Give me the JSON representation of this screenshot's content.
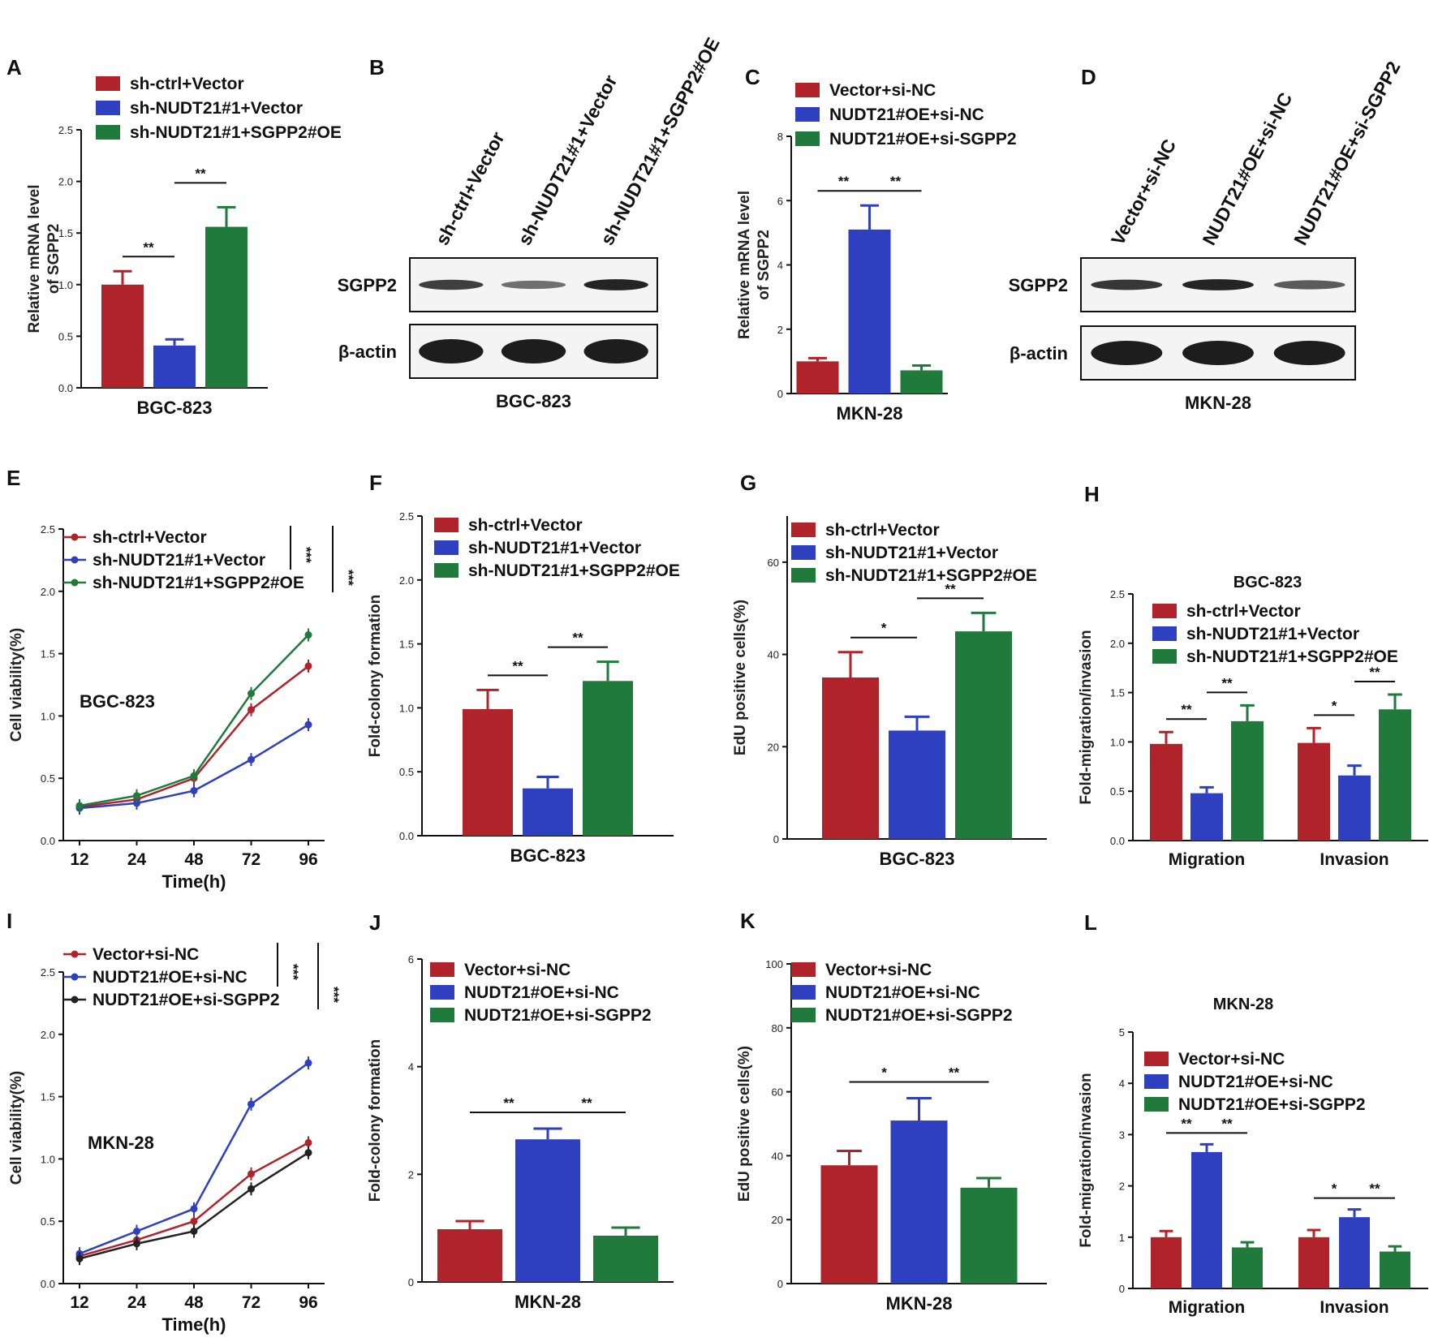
{
  "figure": {
    "colors": {
      "red": "#b0232a",
      "blue": "#2e3fbf",
      "green": "#1f7a3c",
      "black": "#222222"
    }
  },
  "chart_data": [
    {
      "panel": "A",
      "type": "bar",
      "ylabel": "Relative mRNA level of SGPP2",
      "xlabel": "BGC-823",
      "ylim": [
        0,
        2.5
      ],
      "yticks": [
        "0.0",
        "0.5",
        "1.0",
        "1.5",
        "2.0",
        "2.5"
      ],
      "legend": [
        "sh-ctrl+Vector",
        "sh-NUDT21#1+Vector",
        "sh-NUDT21#1+SGPP2#OE"
      ],
      "groups": [
        {
          "label": "",
          "values": [
            1.0,
            0.41,
            1.56
          ],
          "errors": [
            0.13,
            0.06,
            0.19
          ]
        }
      ],
      "sig": [
        {
          "g": 0,
          "from": 0,
          "to": 1,
          "label": "**"
        },
        {
          "g": 0,
          "from": 1,
          "to": 2,
          "label": "**"
        }
      ]
    },
    {
      "panel": "B",
      "type": "blot",
      "cell_line": "BGC-823",
      "lanes": [
        "sh-ctrl+Vector",
        "sh-NUDT21#1+Vector",
        "sh-NUDT21#1+SGPP2#OE"
      ],
      "rows": [
        {
          "name": "SGPP2",
          "intensity": [
            0.75,
            0.4,
            0.95
          ]
        },
        {
          "name": "β-actin",
          "intensity": [
            1.0,
            1.0,
            1.0
          ]
        }
      ]
    },
    {
      "panel": "C",
      "type": "bar",
      "ylabel": "Relative mRNA level of SGPP2",
      "xlabel": "MKN-28",
      "ylim": [
        0,
        8
      ],
      "yticks": [
        "0",
        "2",
        "4",
        "6",
        "8"
      ],
      "legend": [
        "Vector+si-NC",
        "NUDT21#OE+si-NC",
        "NUDT21#OE+si-SGPP2"
      ],
      "groups": [
        {
          "label": "",
          "values": [
            1.0,
            5.1,
            0.72
          ],
          "errors": [
            0.1,
            0.75,
            0.15
          ]
        }
      ],
      "sig": [
        {
          "g": 0,
          "from": 0,
          "to": 1,
          "label": "**"
        },
        {
          "g": 0,
          "from": 1,
          "to": 2,
          "label": "**"
        }
      ]
    },
    {
      "panel": "D",
      "type": "blot",
      "cell_line": "MKN-28",
      "lanes": [
        "Vector+si-NC",
        "NUDT21#OE+si-NC",
        "NUDT21#OE+si-SGPP2"
      ],
      "rows": [
        {
          "name": "SGPP2",
          "intensity": [
            0.8,
            0.95,
            0.55
          ]
        },
        {
          "name": "β-actin",
          "intensity": [
            1.0,
            1.0,
            1.0
          ]
        }
      ]
    },
    {
      "panel": "E",
      "type": "line",
      "ylabel": "Cell viability(%)",
      "xlabel": "Time(h)",
      "inner_label": "BGC-823",
      "ylim": [
        0,
        2.5
      ],
      "yticks": [
        "0.0",
        "0.5",
        "1.0",
        "1.5",
        "2.0",
        "2.5"
      ],
      "x": [
        "12",
        "24",
        "48",
        "72",
        "96"
      ],
      "series": [
        {
          "name": "sh-ctrl+Vector",
          "color": "#b0232a",
          "values": [
            0.27,
            0.33,
            0.5,
            1.05,
            1.4
          ]
        },
        {
          "name": "sh-NUDT21#1+Vector",
          "color": "#2e3fbf",
          "values": [
            0.26,
            0.3,
            0.4,
            0.65,
            0.93
          ]
        },
        {
          "name": "sh-NUDT21#1+SGPP2#OE",
          "color": "#1f7a3c",
          "values": [
            0.28,
            0.36,
            0.52,
            1.18,
            1.65
          ]
        }
      ],
      "sig": [
        "***",
        "***"
      ]
    },
    {
      "panel": "F",
      "type": "bar",
      "ylabel": "Fold-colony formation",
      "xlabel": "BGC-823",
      "ylim": [
        0,
        2.5
      ],
      "yticks": [
        "0.0",
        "0.5",
        "1.0",
        "1.5",
        "2.0",
        "2.5"
      ],
      "legend": [
        "sh-ctrl+Vector",
        "sh-NUDT21#1+Vector",
        "sh-NUDT21#1+SGPP2#OE"
      ],
      "groups": [
        {
          "label": "",
          "values": [
            0.99,
            0.37,
            1.21
          ],
          "errors": [
            0.15,
            0.09,
            0.15
          ]
        }
      ],
      "sig": [
        {
          "g": 0,
          "from": 0,
          "to": 1,
          "label": "**"
        },
        {
          "g": 0,
          "from": 1,
          "to": 2,
          "label": "**"
        }
      ]
    },
    {
      "panel": "G",
      "type": "bar",
      "ylabel": "EdU positive cells(%)",
      "xlabel": "BGC-823",
      "ylim": [
        0,
        70
      ],
      "yticks": [
        "0",
        "20",
        "40",
        "60"
      ],
      "ytick_values": [
        0,
        20,
        40,
        60
      ],
      "legend": [
        "sh-ctrl+Vector",
        "sh-NUDT21#1+Vector",
        "sh-NUDT21#1+SGPP2#OE"
      ],
      "groups": [
        {
          "label": "",
          "values": [
            35,
            23.5,
            45
          ],
          "errors": [
            5.5,
            3.0,
            4.0
          ]
        }
      ],
      "sig": [
        {
          "g": 0,
          "from": 0,
          "to": 1,
          "label": "*"
        },
        {
          "g": 0,
          "from": 1,
          "to": 2,
          "label": "**"
        }
      ]
    },
    {
      "panel": "H",
      "type": "bar",
      "title": "BGC-823",
      "ylabel": "Fold-migration/invasion",
      "ylim": [
        0,
        2.5
      ],
      "yticks": [
        "0.0",
        "0.5",
        "1.0",
        "1.5",
        "2.0",
        "2.5"
      ],
      "legend": [
        "sh-ctrl+Vector",
        "sh-NUDT21#1+Vector",
        "sh-NUDT21#1+SGPP2#OE"
      ],
      "groups": [
        {
          "label": "Migration",
          "values": [
            0.98,
            0.48,
            1.21
          ],
          "errors": [
            0.12,
            0.06,
            0.16
          ]
        },
        {
          "label": "Invasion",
          "values": [
            0.99,
            0.66,
            1.33
          ],
          "errors": [
            0.15,
            0.1,
            0.15
          ]
        }
      ],
      "sig": [
        {
          "g": 0,
          "from": 0,
          "to": 1,
          "label": "**"
        },
        {
          "g": 0,
          "from": 1,
          "to": 2,
          "label": "**"
        },
        {
          "g": 1,
          "from": 0,
          "to": 1,
          "label": "*"
        },
        {
          "g": 1,
          "from": 1,
          "to": 2,
          "label": "**"
        }
      ]
    },
    {
      "panel": "I",
      "type": "line",
      "ylabel": "Cell viability(%)",
      "xlabel": "Time(h)",
      "inner_label": "MKN-28",
      "ylim": [
        0,
        2.5
      ],
      "yticks": [
        "0.0",
        "0.5",
        "1.0",
        "1.5",
        "2.0",
        "2.5"
      ],
      "x": [
        "12",
        "24",
        "48",
        "72",
        "96"
      ],
      "series": [
        {
          "name": "Vector+si-NC",
          "color": "#b0232a",
          "values": [
            0.22,
            0.35,
            0.5,
            0.88,
            1.13
          ]
        },
        {
          "name": "NUDT21#OE+si-NC",
          "color": "#2e3fbf",
          "values": [
            0.24,
            0.42,
            0.6,
            1.44,
            1.77
          ]
        },
        {
          "name": "NUDT21#OE+si-SGPP2",
          "color": "#222222",
          "values": [
            0.2,
            0.32,
            0.42,
            0.76,
            1.05
          ]
        }
      ],
      "sig": [
        "***",
        "***"
      ]
    },
    {
      "panel": "J",
      "type": "bar",
      "ylabel": "Fold-colony formation",
      "xlabel": "MKN-28",
      "ylim": [
        0,
        6
      ],
      "yticks": [
        "0",
        "2",
        "4",
        "6"
      ],
      "legend": [
        "Vector+si-NC",
        "NUDT21#OE+si-NC",
        "NUDT21#OE+si-SGPP2"
      ],
      "groups": [
        {
          "label": "",
          "values": [
            0.98,
            2.65,
            0.86
          ],
          "errors": [
            0.15,
            0.2,
            0.15
          ]
        }
      ],
      "sig": [
        {
          "g": 0,
          "from": 0,
          "to": 1,
          "label": "**"
        },
        {
          "g": 0,
          "from": 1,
          "to": 2,
          "label": "**"
        }
      ]
    },
    {
      "panel": "K",
      "type": "bar",
      "ylabel": "EdU positive cells(%)",
      "xlabel": "MKN-28",
      "ylim": [
        0,
        100
      ],
      "yticks": [
        "0",
        "20",
        "40",
        "60",
        "80",
        "100"
      ],
      "legend": [
        "Vector+si-NC",
        "NUDT21#OE+si-NC",
        "NUDT21#OE+si-SGPP2"
      ],
      "groups": [
        {
          "label": "",
          "values": [
            37,
            51,
            30
          ],
          "errors": [
            4.5,
            7.0,
            3.0
          ]
        }
      ],
      "sig": [
        {
          "g": 0,
          "from": 0,
          "to": 1,
          "label": "*"
        },
        {
          "g": 0,
          "from": 1,
          "to": 2,
          "label": "**"
        }
      ]
    },
    {
      "panel": "L",
      "type": "bar",
      "title": "MKN-28",
      "ylabel": "Fold-migration/invasion",
      "ylim": [
        0,
        5
      ],
      "yticks": [
        "0",
        "1",
        "2",
        "3",
        "4",
        "5"
      ],
      "legend": [
        "Vector+si-NC",
        "NUDT21#OE+si-NC",
        "NUDT21#OE+si-SGPP2"
      ],
      "groups": [
        {
          "label": "Migration",
          "values": [
            1.0,
            2.66,
            0.8
          ],
          "errors": [
            0.12,
            0.15,
            0.1
          ]
        },
        {
          "label": "Invasion",
          "values": [
            1.0,
            1.39,
            0.72
          ],
          "errors": [
            0.14,
            0.15,
            0.1
          ]
        }
      ],
      "sig": [
        {
          "g": 0,
          "from": 0,
          "to": 1,
          "label": "**"
        },
        {
          "g": 0,
          "from": 1,
          "to": 2,
          "label": "**"
        },
        {
          "g": 1,
          "from": 0,
          "to": 1,
          "label": "*"
        },
        {
          "g": 1,
          "from": 1,
          "to": 2,
          "label": "**"
        }
      ]
    }
  ]
}
